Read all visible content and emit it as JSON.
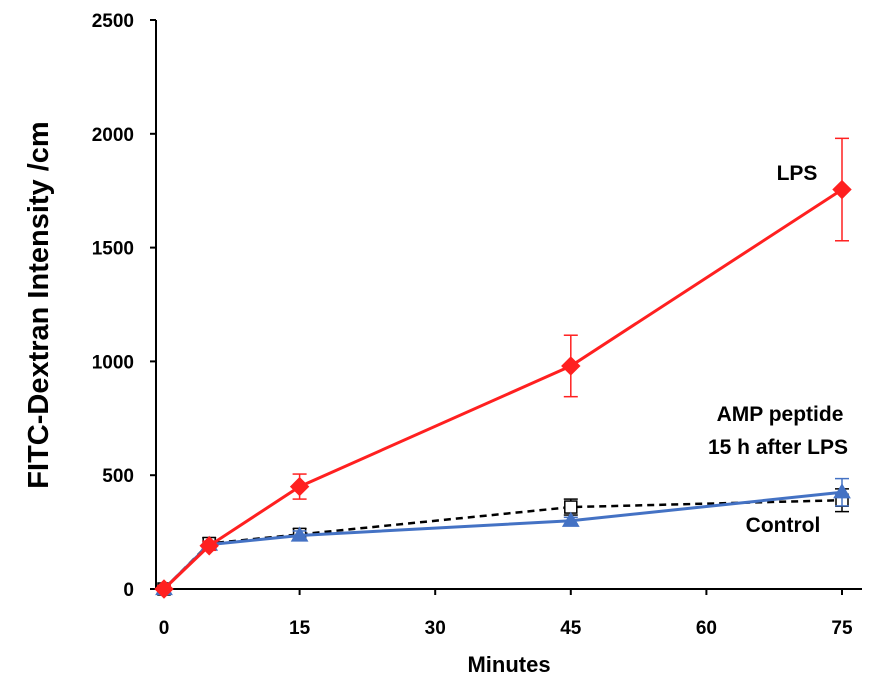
{
  "chart_data": {
    "type": "line",
    "title": "",
    "xlabel": "Minutes",
    "ylabel": "FITC-Dextran Intensity /cm",
    "xlim": [
      0,
      75
    ],
    "ylim": [
      0,
      2500
    ],
    "x_ticks": [
      "0",
      "15",
      "30",
      "45",
      "60",
      "75"
    ],
    "y_ticks": [
      "0",
      "500",
      "1000",
      "1500",
      "2000",
      "2500"
    ],
    "grid": false,
    "series": [
      {
        "name": "LPS",
        "color": "#ff2020",
        "marker": "diamond",
        "line": "solid",
        "points": [
          {
            "x": 0,
            "y": 0,
            "err": 15
          },
          {
            "x": 5,
            "y": 190,
            "err": 20
          },
          {
            "x": 15,
            "y": 450,
            "err": 55
          },
          {
            "x": 45,
            "y": 980,
            "err": 135
          },
          {
            "x": 75,
            "y": 1755,
            "err": 225
          }
        ]
      },
      {
        "name": "AMP peptide 15 h after LPS",
        "label_lines": [
          "AMP peptide",
          "15 h after LPS"
        ],
        "color": "#4472c4",
        "marker": "triangle",
        "line": "solid",
        "points": [
          {
            "x": 0,
            "y": 0,
            "err": 10
          },
          {
            "x": 5,
            "y": 195,
            "err": 15
          },
          {
            "x": 15,
            "y": 235,
            "err": 20
          },
          {
            "x": 45,
            "y": 300,
            "err": 15
          },
          {
            "x": 75,
            "y": 425,
            "err": 60
          }
        ]
      },
      {
        "name": "Control",
        "color": "#000000",
        "marker": "square-open",
        "line": "dashed",
        "points": [
          {
            "x": 0,
            "y": 0,
            "err": 10
          },
          {
            "x": 5,
            "y": 200,
            "err": 25
          },
          {
            "x": 15,
            "y": 240,
            "err": 25
          },
          {
            "x": 45,
            "y": 360,
            "err": 35
          },
          {
            "x": 75,
            "y": 390,
            "err": 50
          }
        ]
      }
    ],
    "annotations": [
      {
        "text": "LPS",
        "series": "LPS"
      },
      {
        "text": "AMP peptide",
        "series": "AMP peptide 15 h after LPS"
      },
      {
        "text": "15 h after LPS",
        "series": "AMP peptide 15 h after LPS"
      },
      {
        "text": "Control",
        "series": "Control"
      }
    ]
  }
}
